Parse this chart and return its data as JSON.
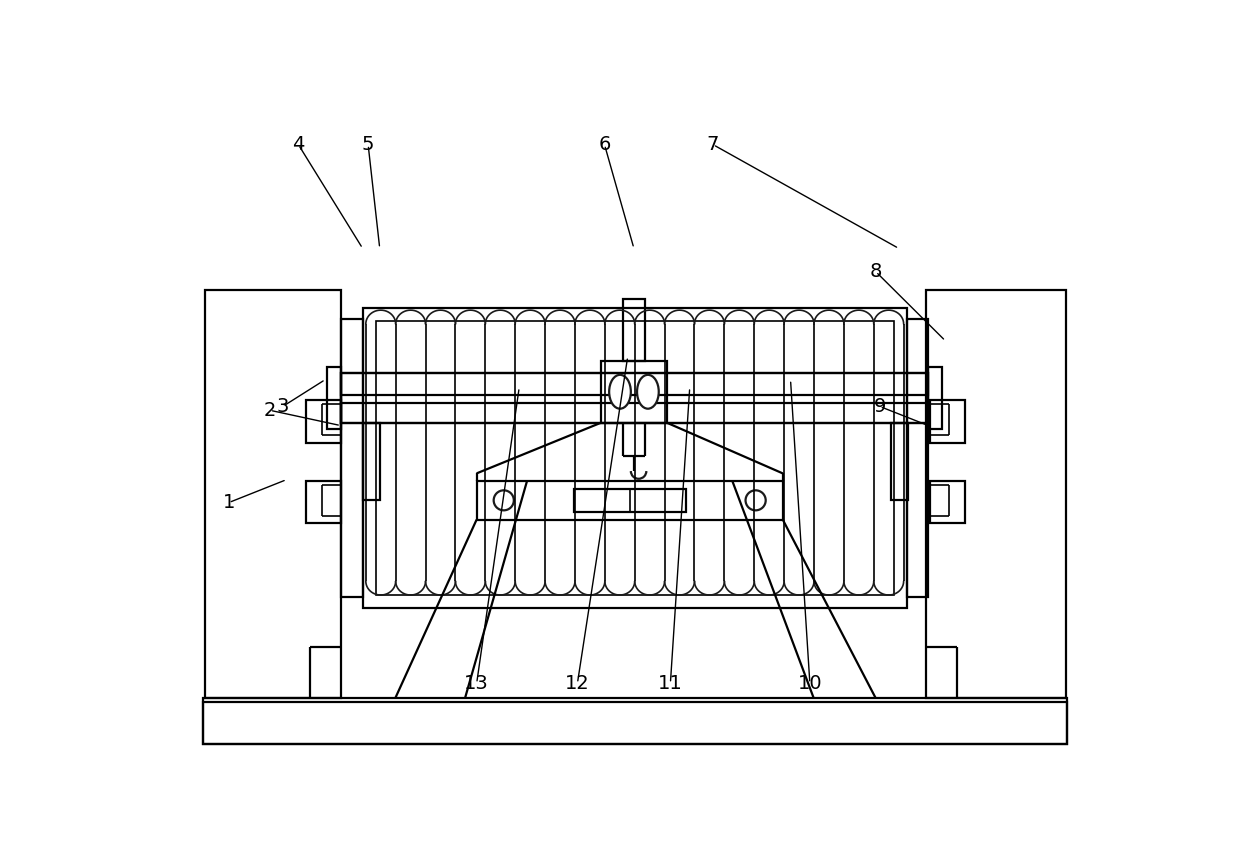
{
  "bg_color": "#ffffff",
  "lc": "#1a1a1a",
  "lw": 1.6,
  "lw2": 1.2,
  "fig_w": 12.4,
  "fig_h": 8.52,
  "xlim": [
    0,
    1240
  ],
  "ylim": [
    0,
    852
  ]
}
